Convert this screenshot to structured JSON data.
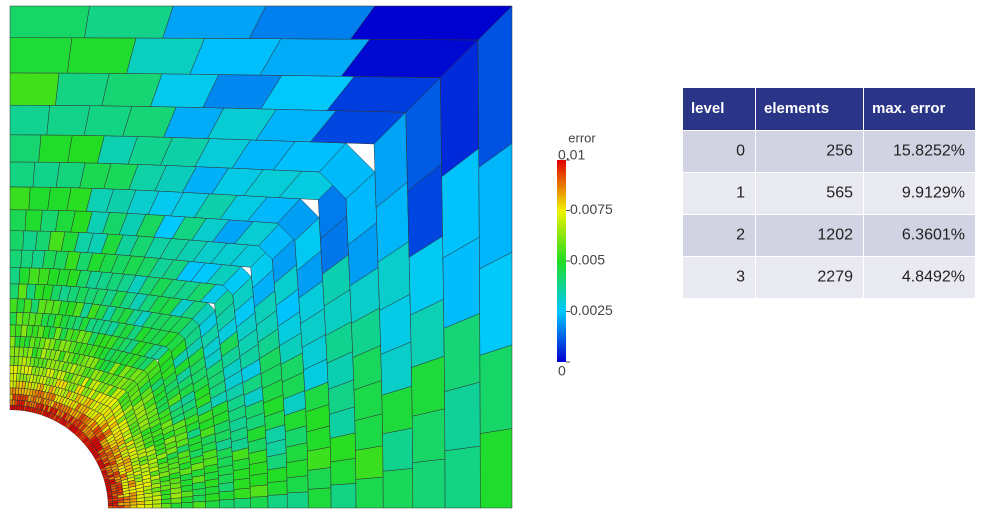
{
  "colorbar": {
    "title": "error",
    "lim": [
      0,
      0.01
    ],
    "ticks": [
      0.01,
      0.0075,
      0.005,
      0.0025,
      0
    ]
  },
  "table": {
    "header": [
      "level",
      "elements",
      "max. error"
    ],
    "rows": [
      [
        0,
        256,
        "15.8252%"
      ],
      [
        1,
        565,
        "9.9129%"
      ],
      [
        2,
        1202,
        "6.3601%"
      ],
      [
        3,
        2279,
        "4.8492%"
      ]
    ]
  }
}
